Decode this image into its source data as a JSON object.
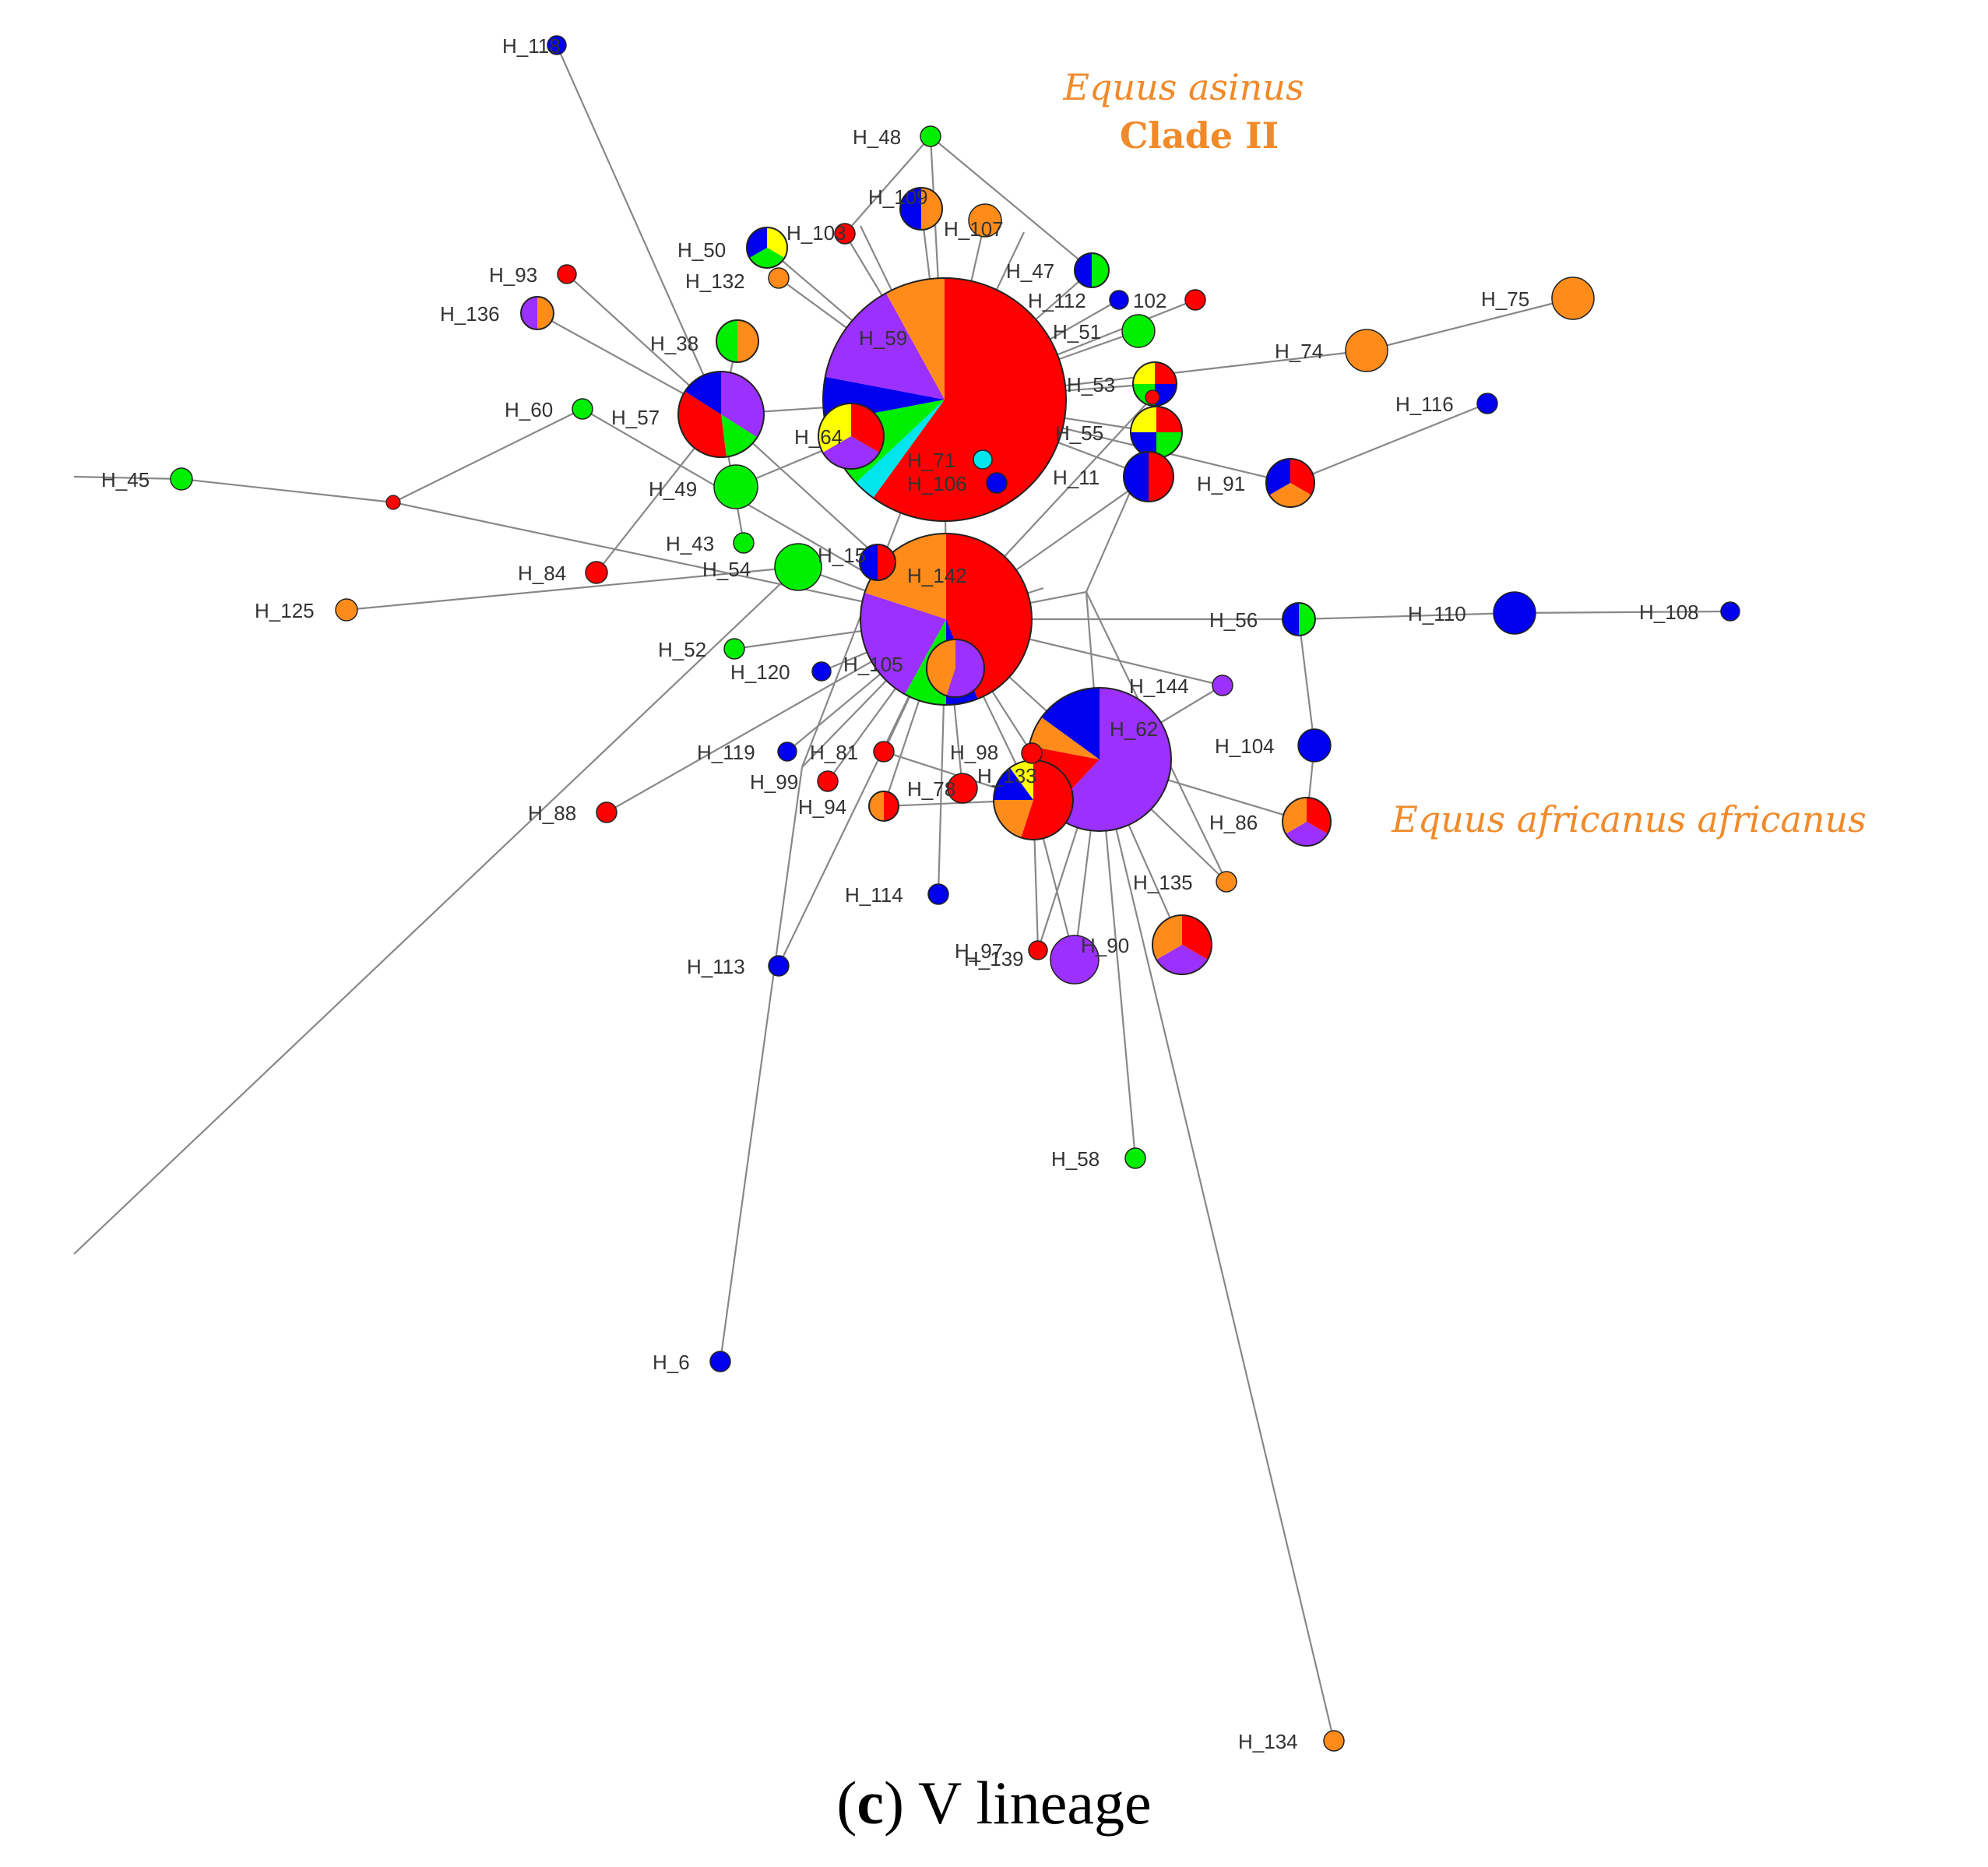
{
  "colors": {
    "red": "#ff0000",
    "blue": "#0000ee",
    "green": "#00ee00",
    "orange": "#ff8c1a",
    "purple": "#9b30ff",
    "yellow": "#ffff00",
    "cyan": "#00e5ee",
    "edge": "#888888",
    "clade_text": "#f08a2a"
  },
  "annotations": {
    "asinus_species": "Equus asinus",
    "asinus_clade": "Clade II",
    "africanus": "Equus africanus africanus"
  },
  "caption": {
    "open_paren": "(",
    "letter": "c",
    "rest": ") V lineage"
  },
  "nodes": [
    {
      "id": "H_118",
      "label": "H_118",
      "colors": [
        "blue"
      ]
    },
    {
      "id": "H_48",
      "label": "H_48",
      "colors": [
        "green"
      ]
    },
    {
      "id": "H_93",
      "label": "H_93",
      "colors": [
        "red"
      ]
    },
    {
      "id": "H_136",
      "label": "H_136",
      "colors": [
        "orange",
        "purple"
      ]
    },
    {
      "id": "H_50",
      "label": "H_50",
      "colors": [
        "yellow",
        "green",
        "blue"
      ]
    },
    {
      "id": "H_132",
      "label": "H_132",
      "colors": [
        "orange"
      ]
    },
    {
      "id": "H_38",
      "label": "H_38",
      "colors": [
        "orange",
        "green"
      ]
    },
    {
      "id": "H_60",
      "label": "H_60",
      "colors": [
        "green"
      ]
    },
    {
      "id": "H_57",
      "label": "H_57",
      "colors": [
        "purple",
        "green",
        "red",
        "blue"
      ]
    },
    {
      "id": "H_45",
      "label": "H_45",
      "colors": [
        "green"
      ]
    },
    {
      "id": "H_84",
      "label": "H_84",
      "colors": [
        "red"
      ]
    },
    {
      "id": "H_125",
      "label": "H_125",
      "colors": [
        "orange"
      ]
    },
    {
      "id": "H_43",
      "label": "H_43",
      "colors": [
        "green"
      ]
    },
    {
      "id": "H_49",
      "label": "H_49",
      "colors": [
        "green"
      ]
    },
    {
      "id": "H_54",
      "label": "H_54",
      "colors": [
        "green"
      ]
    },
    {
      "id": "H_52",
      "label": "H_52",
      "colors": [
        "green"
      ]
    },
    {
      "id": "H_120",
      "label": "H_120",
      "colors": [
        "blue"
      ]
    },
    {
      "id": "H_88",
      "label": "H_88",
      "colors": [
        "red"
      ]
    },
    {
      "id": "H_119",
      "label": "H_119",
      "colors": [
        "blue"
      ]
    },
    {
      "id": "H_81",
      "label": "H_81",
      "colors": [
        "red"
      ]
    },
    {
      "id": "H_99",
      "label": "H_99",
      "colors": [
        "red"
      ]
    },
    {
      "id": "H_94",
      "label": "H_94",
      "colors": [
        "red",
        "orange"
      ]
    },
    {
      "id": "H_78",
      "label": "H_78",
      "colors": [
        "red"
      ]
    },
    {
      "id": "H_114",
      "label": "H_114",
      "colors": [
        "blue"
      ]
    },
    {
      "id": "H_113",
      "label": "H_113",
      "colors": [
        "blue"
      ]
    },
    {
      "id": "H_6",
      "label": "H_6",
      "colors": [
        "blue"
      ]
    },
    {
      "id": "H_59",
      "label": "H_59",
      "colors": [
        "red",
        "cyan",
        "green",
        "blue",
        "purple",
        "orange"
      ]
    },
    {
      "id": "H_71",
      "label": "H_71",
      "colors": [
        "cyan"
      ]
    },
    {
      "id": "H_106",
      "label": "H_106",
      "colors": [
        "blue"
      ]
    },
    {
      "id": "H_47",
      "label": "H_47",
      "colors": [
        "green",
        "blue"
      ]
    },
    {
      "id": "H_112",
      "label": "H_112",
      "colors": [
        "blue"
      ]
    },
    {
      "id": "H_102",
      "label": "102",
      "colors": [
        "red"
      ]
    },
    {
      "id": "H_51",
      "label": "H_51",
      "colors": [
        "green"
      ]
    },
    {
      "id": "H_53",
      "label": "H_53",
      "colors": [
        "red",
        "blue",
        "green",
        "yellow"
      ]
    },
    {
      "id": "H_55",
      "label": "H_55",
      "colors": [
        "red",
        "green",
        "blue",
        "yellow"
      ]
    },
    {
      "id": "H_11",
      "label": "H_11",
      "colors": [
        "red",
        "blue"
      ]
    },
    {
      "id": "H_75",
      "label": "H_75",
      "colors": [
        "orange"
      ]
    },
    {
      "id": "H_74",
      "label": "H_74",
      "colors": [
        "orange"
      ]
    },
    {
      "id": "H_116",
      "label": "H_116",
      "colors": [
        "blue"
      ]
    },
    {
      "id": "H_91",
      "label": "H_91",
      "colors": [
        "red",
        "orange",
        "blue"
      ]
    },
    {
      "id": "H_56",
      "label": "H_56",
      "colors": [
        "green",
        "blue"
      ]
    },
    {
      "id": "H_110",
      "label": "H_110",
      "colors": [
        "blue"
      ]
    },
    {
      "id": "H_108",
      "label": "H_108",
      "colors": [
        "blue"
      ]
    },
    {
      "id": "H_144",
      "label": "H_144",
      "colors": [
        "purple"
      ]
    },
    {
      "id": "H_104",
      "label": "H_104",
      "colors": [
        "blue"
      ]
    },
    {
      "id": "H_86",
      "label": "H_86",
      "colors": [
        "red",
        "purple",
        "orange"
      ]
    },
    {
      "id": "H_135",
      "label": "H_135",
      "colors": [
        "orange"
      ]
    },
    {
      "id": "H_90",
      "label": "H_90",
      "colors": [
        "red",
        "purple",
        "orange"
      ]
    },
    {
      "id": "H_97",
      "label": "H_97",
      "colors": [
        "red"
      ]
    },
    {
      "id": "H_139",
      "label": "H_139",
      "colors": [
        "purple"
      ]
    },
    {
      "id": "H_58",
      "label": "H_58",
      "colors": [
        "green"
      ]
    },
    {
      "id": "H_134",
      "label": "H_134",
      "colors": [
        "orange"
      ]
    },
    {
      "id": "H_142",
      "label": "H_142",
      "colors": [
        "red",
        "blue",
        "green",
        "purple",
        "orange"
      ]
    },
    {
      "id": "H_105",
      "label": "H_105",
      "colors": [
        "purple",
        "orange"
      ]
    },
    {
      "id": "H_62",
      "label": "H_62",
      "colors": [
        "purple",
        "red",
        "orange",
        "blue"
      ]
    },
    {
      "id": "H_133",
      "label": "H_133",
      "colors": [
        "red",
        "orange",
        "blue",
        "yellow"
      ]
    },
    {
      "id": "H_15",
      "label": "H_15",
      "colors": [
        "red",
        "blue"
      ]
    },
    {
      "id": "H_98",
      "label": "H_98",
      "colors": [
        "red"
      ]
    },
    {
      "id": "H_64",
      "label": "H_64",
      "colors": [
        "red",
        "purple",
        "yellow"
      ]
    },
    {
      "id": "H_109",
      "label": "H_109",
      "colors": [
        "orange",
        "blue"
      ]
    },
    {
      "id": "H_107",
      "label": "H_107",
      "colors": [
        "orange"
      ]
    },
    {
      "id": "H_103",
      "label": "H_103",
      "colors": [
        "red"
      ]
    }
  ]
}
